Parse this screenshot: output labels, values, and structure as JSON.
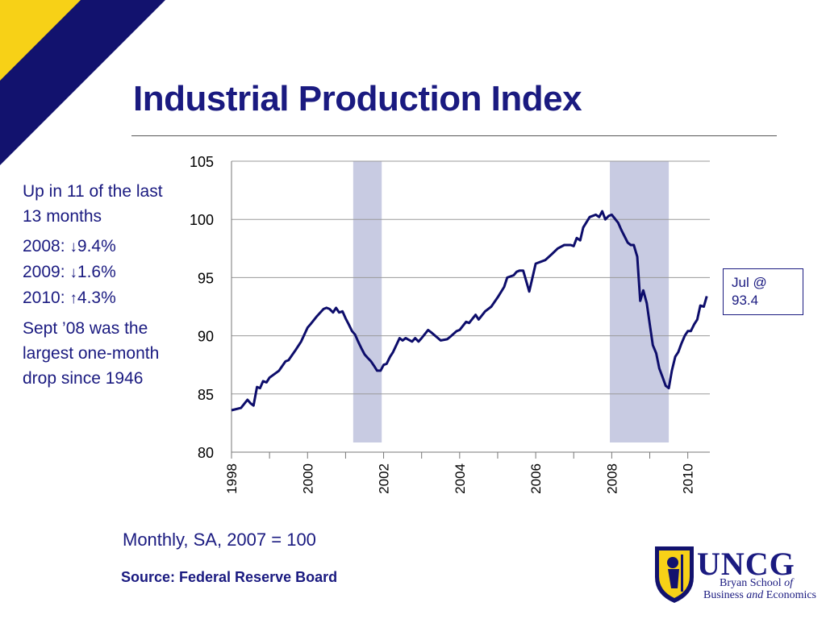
{
  "slide": {
    "title": "Industrial Production Index",
    "subtitle": "Monthly, SA, 2007 = 100",
    "source": "Source:  Federal Reserve Board"
  },
  "sidebar": {
    "p1": "Up in 11 of the last 13 months",
    "stats": [
      {
        "label": "2008:",
        "arrow": "↓",
        "value": "9.4%"
      },
      {
        "label": "2009:",
        "arrow": "↓",
        "value": "1.6%"
      },
      {
        "label": "2010:",
        "arrow": "↑",
        "value": "4.3%"
      }
    ],
    "p3": "Sept ’08 was the largest one-month drop since 1946"
  },
  "callout": {
    "line1": "Jul @",
    "line2": "93.4"
  },
  "logo": {
    "name": "UNCG",
    "line1_a": "Bryan School",
    "line1_b": "of",
    "line2_a": "Business",
    "line2_b": "and",
    "line2_c": "Economics"
  },
  "colors": {
    "title": "#1a1a80",
    "line": "#0d0d6b",
    "recession": "#c8cbe2",
    "corner_yellow": "#f7d117",
    "corner_navy": "#12126e"
  },
  "chart_data": {
    "type": "line",
    "title": "",
    "xlabel": "",
    "ylabel": "",
    "ylim": [
      80,
      105
    ],
    "yticks": [
      80,
      85,
      90,
      95,
      100,
      105
    ],
    "xlim": [
      1998.0,
      2010.58
    ],
    "xticks": [
      1998,
      2000,
      2002,
      2004,
      2006,
      2008,
      2010
    ],
    "xtick_labels": [
      "1998",
      "2000",
      "2002",
      "2004",
      "2006",
      "2008",
      "2010"
    ],
    "grid": true,
    "recessions": [
      [
        2001.2,
        2001.95
      ],
      [
        2007.95,
        2009.5
      ]
    ],
    "series": [
      {
        "x": [
          1998.0,
          1998.25,
          1998.42,
          1998.5,
          1998.58,
          1998.67,
          1998.75,
          1998.83,
          1998.92,
          1999.0,
          1999.25,
          1999.42,
          1999.5,
          1999.67,
          1999.83,
          2000.0,
          2000.08,
          2000.25,
          2000.42,
          2000.5,
          2000.58,
          2000.67,
          2000.75,
          2000.83,
          2000.92,
          2001.0,
          2001.08,
          2001.17,
          2001.25,
          2001.33,
          2001.42,
          2001.5,
          2001.58,
          2001.67,
          2001.75,
          2001.83,
          2001.92,
          2002.0,
          2002.08,
          2002.17,
          2002.25,
          2002.42,
          2002.5,
          2002.58,
          2002.75,
          2002.83,
          2002.92,
          2003.0,
          2003.17,
          2003.25,
          2003.5,
          2003.67,
          2003.75,
          2003.92,
          2004.0,
          2004.17,
          2004.25,
          2004.42,
          2004.5,
          2004.67,
          2004.83,
          2005.0,
          2005.17,
          2005.25,
          2005.42,
          2005.5,
          2005.58,
          2005.67,
          2005.83,
          2006.0,
          2006.25,
          2006.42,
          2006.58,
          2006.75,
          2006.92,
          2007.0,
          2007.08,
          2007.17,
          2007.25,
          2007.42,
          2007.58,
          2007.67,
          2007.75,
          2007.83,
          2007.92,
          2008.0,
          2008.17,
          2008.25,
          2008.42,
          2008.5,
          2008.58,
          2008.67,
          2008.75,
          2008.83,
          2008.92,
          2009.0,
          2009.08,
          2009.17,
          2009.25,
          2009.33,
          2009.42,
          2009.5,
          2009.58,
          2009.67,
          2009.75,
          2009.83,
          2009.92,
          2010.0,
          2010.08,
          2010.17,
          2010.25,
          2010.33,
          2010.42,
          2010.5
        ],
        "y": [
          83.6,
          83.8,
          84.5,
          84.2,
          84.0,
          85.6,
          85.5,
          86.1,
          86.0,
          86.4,
          87.0,
          87.8,
          87.9,
          88.7,
          89.5,
          90.7,
          91.0,
          91.7,
          92.3,
          92.4,
          92.3,
          92.0,
          92.4,
          92.0,
          92.1,
          91.5,
          91.0,
          90.4,
          90.1,
          89.5,
          88.9,
          88.4,
          88.1,
          87.8,
          87.4,
          87.0,
          87.0,
          87.5,
          87.6,
          88.2,
          88.6,
          89.8,
          89.6,
          89.8,
          89.5,
          89.8,
          89.5,
          89.8,
          90.5,
          90.3,
          89.6,
          89.7,
          89.9,
          90.4,
          90.5,
          91.2,
          91.1,
          91.8,
          91.4,
          92.1,
          92.5,
          93.3,
          94.2,
          95.0,
          95.2,
          95.5,
          95.6,
          95.6,
          93.8,
          96.2,
          96.5,
          97.0,
          97.5,
          97.8,
          97.8,
          97.7,
          98.4,
          98.2,
          99.3,
          100.2,
          100.4,
          100.2,
          100.7,
          100.0,
          100.3,
          100.4,
          99.7,
          99.1,
          98.0,
          97.8,
          97.8,
          96.8,
          93.0,
          93.9,
          92.8,
          91.0,
          89.2,
          88.5,
          87.2,
          86.5,
          85.7,
          85.5,
          87.0,
          88.2,
          88.6,
          89.3,
          90.0,
          90.4,
          90.4,
          91.0,
          91.4,
          92.6,
          92.5,
          93.4
        ]
      }
    ]
  }
}
